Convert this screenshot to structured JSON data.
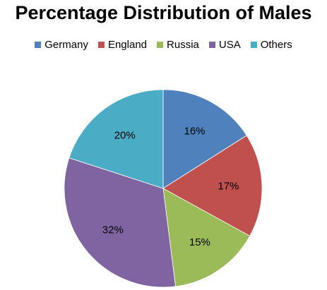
{
  "chart_data": {
    "type": "pie",
    "title": "Percentage Distribution of Males",
    "legend_position": "top",
    "categories": [
      "Germany",
      "England",
      "Russia",
      "USA",
      "Others"
    ],
    "values": [
      16,
      17,
      15,
      32,
      20
    ],
    "labels": [
      "16%",
      "17%",
      "15%",
      "32%",
      "20%"
    ],
    "colors": [
      "#4F81BD",
      "#C0504D",
      "#9BBB59",
      "#8064A2",
      "#4BACC6"
    ]
  }
}
